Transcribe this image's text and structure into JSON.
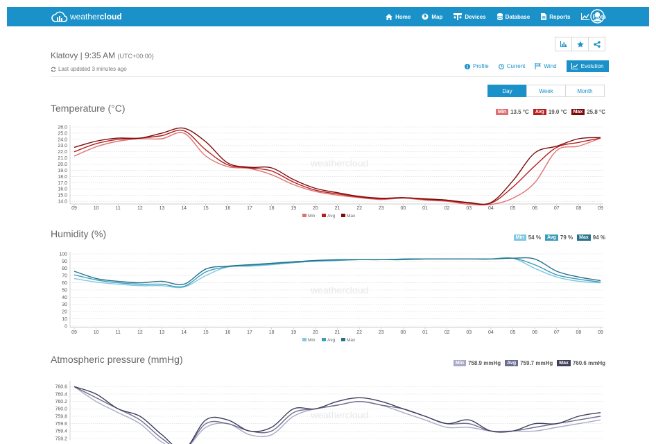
{
  "header": {
    "logo_light": "weather",
    "logo_bold": "cloud",
    "nav": [
      {
        "label": "Home",
        "icon": "home-icon"
      },
      {
        "label": "Map",
        "icon": "globe-icon"
      },
      {
        "label": "Devices",
        "icon": "devices-icon"
      },
      {
        "label": "Database",
        "icon": "database-icon"
      },
      {
        "label": "Reports",
        "icon": "report-icon"
      },
      {
        "label": "Plots",
        "icon": "plots-icon"
      }
    ]
  },
  "station": {
    "name_time": "Klatovy | 9:35 AM",
    "timezone": "(UTC+00:00)",
    "updated": "Last updated 3 minutes ago"
  },
  "view_tabs": [
    "Profile",
    "Current",
    "Wind",
    "Evolution"
  ],
  "period_tabs": [
    "Day",
    "Week",
    "Month"
  ],
  "colors": {
    "brand": "#1a91c8"
  },
  "chart_data": [
    {
      "type": "line",
      "title": "Temperature (°C)",
      "summary": [
        {
          "name": "Min",
          "value": "13.5 °C",
          "color": "#e07070"
        },
        {
          "name": "Avg",
          "value": "19.0 °C",
          "color": "#b81e1e"
        },
        {
          "name": "Max",
          "value": "25.8 °C",
          "color": "#7a0c0c"
        }
      ],
      "watermark": "weathercloud",
      "x_ticks": [
        "09",
        "10",
        "11",
        "12",
        "13",
        "14",
        "15",
        "16",
        "17",
        "18",
        "19",
        "20",
        "21",
        "22",
        "23",
        "00",
        "01",
        "02",
        "03",
        "04",
        "05",
        "06",
        "07",
        "08",
        "09"
      ],
      "y_ticks": [
        "14.0",
        "15.0",
        "16.0",
        "17.0",
        "18.0",
        "19.0",
        "20.0",
        "21.0",
        "22.0",
        "23.0",
        "24.0",
        "25.0",
        "26.0"
      ],
      "ylim": [
        13.8,
        26.0
      ],
      "series": [
        {
          "name": "Min",
          "color": "#e07070",
          "values": [
            21.3,
            22.8,
            23.7,
            24.1,
            24.1,
            25.0,
            21.3,
            19.6,
            19.3,
            18.3,
            16.7,
            15.6,
            15.0,
            14.6,
            14.3,
            14.5,
            14.2,
            14.0,
            13.5,
            13.5,
            14.5,
            17.0,
            22.2,
            22.9,
            24.2
          ]
        },
        {
          "name": "Avg",
          "color": "#b81e1e",
          "values": [
            22.0,
            23.3,
            24.0,
            24.2,
            24.6,
            25.4,
            22.3,
            19.9,
            19.4,
            18.9,
            17.1,
            15.8,
            15.2,
            14.7,
            14.4,
            14.6,
            14.3,
            14.1,
            13.7,
            13.7,
            16.3,
            19.7,
            22.7,
            23.5,
            24.2
          ]
        },
        {
          "name": "Max",
          "color": "#7a0c0c",
          "values": [
            22.7,
            23.7,
            24.2,
            24.2,
            25.0,
            25.8,
            23.6,
            20.2,
            19.5,
            19.4,
            17.5,
            16.1,
            15.4,
            14.8,
            14.5,
            14.6,
            14.4,
            14.2,
            13.8,
            13.8,
            17.3,
            21.8,
            22.9,
            24.1,
            24.3
          ]
        }
      ]
    },
    {
      "type": "line",
      "title": "Humidity (%)",
      "summary": [
        {
          "name": "Min",
          "value": "54 %",
          "color": "#7fc8e0"
        },
        {
          "name": "Avg",
          "value": "79 %",
          "color": "#3e9cbb"
        },
        {
          "name": "Max",
          "value": "94 %",
          "color": "#25728a"
        }
      ],
      "watermark": "weathercloud",
      "x_ticks": [
        "09",
        "10",
        "11",
        "12",
        "13",
        "14",
        "15",
        "16",
        "17",
        "18",
        "19",
        "20",
        "21",
        "22",
        "23",
        "00",
        "01",
        "02",
        "03",
        "04",
        "05",
        "06",
        "07",
        "08",
        "09"
      ],
      "y_ticks": [
        "0",
        "10",
        "20",
        "30",
        "40",
        "50",
        "60",
        "70",
        "80",
        "90",
        "100"
      ],
      "ylim": [
        0,
        100
      ],
      "series": [
        {
          "name": "Min",
          "color": "#7fc8e0",
          "values": [
            66,
            61,
            58,
            56,
            56,
            54,
            70,
            82,
            83,
            85,
            88,
            90,
            91,
            92,
            92,
            92,
            93,
            93,
            93,
            93,
            94,
            80,
            68,
            62,
            60
          ]
        },
        {
          "name": "Avg",
          "color": "#3e9cbb",
          "values": [
            71,
            64,
            60,
            58,
            58,
            55,
            75,
            82,
            84,
            86,
            88,
            90,
            91,
            92,
            92,
            92,
            93,
            93,
            93,
            93,
            94,
            85,
            71,
            65,
            61
          ]
        },
        {
          "name": "Max",
          "color": "#25728a",
          "values": [
            76,
            66,
            62,
            60,
            62,
            58,
            79,
            83,
            85,
            87,
            89,
            91,
            92,
            92,
            92,
            93,
            93,
            93,
            93,
            93,
            94,
            93,
            76,
            68,
            63
          ]
        }
      ]
    },
    {
      "type": "line",
      "title": "Atmospheric pressure (mmHg)",
      "summary": [
        {
          "name": "Min",
          "value": "758.9 mmHg",
          "color": "#a9a9c6"
        },
        {
          "name": "Avg",
          "value": "759.7 mmHg",
          "color": "#6c6c8e"
        },
        {
          "name": "Max",
          "value": "760.6 mmHg",
          "color": "#3f3f5a"
        }
      ],
      "watermark": "weathercloud",
      "y_ticks": [
        "760.6",
        "760.4",
        "760.2",
        "760.0",
        "759.8",
        "759.6",
        "759.4",
        "759.2"
      ],
      "ylim": [
        759.2,
        760.7
      ],
      "series": [
        {
          "name": "Min",
          "color": "#a9a9c6",
          "values": [
            760.6,
            760.2,
            759.9,
            759.6,
            759.1,
            758.9,
            759.5,
            759.6,
            759.3,
            759.3,
            759.8,
            760.0,
            760.1,
            760.2,
            760.1,
            759.9,
            759.7,
            759.5,
            759.5,
            759.4,
            759.4,
            759.4,
            759.5,
            759.6,
            759.7
          ]
        },
        {
          "name": "Avg",
          "color": "#6c6c8e",
          "values": [
            760.6,
            760.3,
            760.0,
            759.7,
            759.2,
            758.9,
            759.6,
            759.6,
            759.4,
            759.4,
            759.9,
            760.0,
            760.1,
            760.2,
            760.1,
            760.0,
            759.8,
            759.6,
            759.6,
            759.4,
            759.4,
            759.5,
            759.6,
            759.7,
            759.8
          ]
        },
        {
          "name": "Max",
          "color": "#3f3f5a",
          "values": [
            760.6,
            760.4,
            760.0,
            759.8,
            759.3,
            758.9,
            759.7,
            759.7,
            759.4,
            759.5,
            760.0,
            760.0,
            760.2,
            760.3,
            760.2,
            760.0,
            759.8,
            759.6,
            759.7,
            759.4,
            759.4,
            759.6,
            759.6,
            759.8,
            759.9
          ]
        }
      ]
    }
  ]
}
